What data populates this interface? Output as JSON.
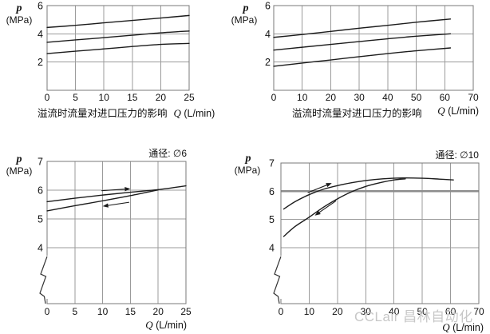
{
  "page": {
    "watermark": "CCLair 昌林自动化",
    "background": "#ffffff"
  },
  "labels": {
    "pressure_symbol": "p",
    "pressure_unit": "(MPa)",
    "flow_symbol": "Q",
    "flow_unit": "(L/min)"
  },
  "colors": {
    "curve": "#1c1c1c",
    "grid": "#9b9b9b",
    "grid_bold": "#8d8d8d",
    "border": "#787878",
    "text": "#111111",
    "watermark": "#c7c7c7"
  },
  "chart_data": [
    {
      "id": "overflow-inlet-pressure-small-valve",
      "type": "line",
      "caption": "溢流时流量对进口压力的影响",
      "xlabel": "Q (L/min)",
      "ylabel": "p (MPa)",
      "xlim": [
        0,
        25
      ],
      "xticks": [
        0,
        5,
        10,
        15,
        20,
        25
      ],
      "ylim": [
        0,
        6
      ],
      "yticks": [
        2,
        4,
        6
      ],
      "ygrid": [
        2,
        4
      ],
      "series": [
        {
          "name": "setting-high",
          "points": [
            [
              0,
              4.45
            ],
            [
              5,
              4.6
            ],
            [
              10,
              4.78
            ],
            [
              15,
              4.95
            ],
            [
              20,
              5.12
            ],
            [
              25,
              5.3
            ]
          ]
        },
        {
          "name": "setting-mid",
          "points": [
            [
              0,
              3.4
            ],
            [
              5,
              3.57
            ],
            [
              10,
              3.73
            ],
            [
              15,
              3.9
            ],
            [
              20,
              4.07
            ],
            [
              25,
              4.2
            ]
          ]
        },
        {
          "name": "setting-low",
          "points": [
            [
              0,
              2.6
            ],
            [
              5,
              2.77
            ],
            [
              10,
              2.93
            ],
            [
              15,
              3.1
            ],
            [
              20,
              3.25
            ],
            [
              25,
              3.32
            ]
          ]
        }
      ]
    },
    {
      "id": "overflow-inlet-pressure-large-valve",
      "type": "line",
      "caption": "溢流时流量对进口压力的影响",
      "xlabel": "Q (L/min)",
      "ylabel": "p (MPa)",
      "xlim": [
        0,
        70
      ],
      "xticks": [
        0,
        10,
        20,
        30,
        40,
        50,
        60,
        70
      ],
      "ylim": [
        0,
        6
      ],
      "yticks": [
        2,
        4,
        6
      ],
      "ygrid": [
        2,
        4
      ],
      "series": [
        {
          "name": "setting-high",
          "points": [
            [
              0,
              3.75
            ],
            [
              10,
              3.95
            ],
            [
              20,
              4.17
            ],
            [
              30,
              4.4
            ],
            [
              40,
              4.6
            ],
            [
              50,
              4.82
            ],
            [
              62,
              5.05
            ]
          ]
        },
        {
          "name": "setting-mid",
          "points": [
            [
              0,
              2.85
            ],
            [
              10,
              3.05
            ],
            [
              20,
              3.25
            ],
            [
              30,
              3.45
            ],
            [
              40,
              3.65
            ],
            [
              50,
              3.83
            ],
            [
              62,
              4.0
            ]
          ]
        },
        {
          "name": "setting-low",
          "points": [
            [
              0,
              1.7
            ],
            [
              10,
              1.93
            ],
            [
              20,
              2.15
            ],
            [
              30,
              2.38
            ],
            [
              40,
              2.6
            ],
            [
              50,
              2.8
            ],
            [
              62,
              3.0
            ]
          ]
        }
      ]
    },
    {
      "id": "hysteresis-dn6",
      "type": "line",
      "size_label": "通径: ∅6",
      "xlabel": "Q (L/min)",
      "ylabel": "p (MPa)",
      "xlim": [
        0,
        25
      ],
      "xticks": [
        0,
        5,
        10,
        15,
        20,
        25
      ],
      "ylim": [
        4,
        7
      ],
      "yticks": [
        4,
        5,
        6,
        7
      ],
      "ygrid": [
        4,
        5,
        6
      ],
      "axis_break": true,
      "series": [
        {
          "name": "increasing-flow",
          "points": [
            [
              0,
              5.6
            ],
            [
              5,
              5.72
            ],
            [
              10,
              5.83
            ],
            [
              15,
              5.93
            ],
            [
              20,
              6.02
            ],
            [
              25,
              6.15
            ]
          ]
        },
        {
          "name": "decreasing-flow",
          "points": [
            [
              0,
              5.28
            ],
            [
              5,
              5.46
            ],
            [
              10,
              5.63
            ],
            [
              15,
              5.81
            ],
            [
              20,
              6.01
            ]
          ]
        }
      ],
      "arrows": [
        {
          "name": "flow-increase-arrow",
          "from": [
            9.8,
            5.98
          ],
          "to": [
            15,
            6.05
          ],
          "dir": "right"
        },
        {
          "name": "flow-decrease-arrow",
          "from": [
            14.8,
            5.58
          ],
          "to": [
            10,
            5.44
          ],
          "dir": "left"
        }
      ]
    },
    {
      "id": "hysteresis-dn10",
      "type": "line",
      "size_label": "通径: ∅10",
      "xlabel": "Q (L/min)",
      "ylabel": "p (MPa)",
      "xlim": [
        0,
        70
      ],
      "xticks": [
        0,
        10,
        20,
        30,
        40,
        50,
        60,
        70
      ],
      "ylim": [
        4,
        7
      ],
      "yticks": [
        4,
        5,
        6,
        7
      ],
      "ygrid": [
        4,
        5,
        6
      ],
      "ygrid_bold": [
        6
      ],
      "axis_break": true,
      "series": [
        {
          "name": "increasing-flow",
          "points": [
            [
              1,
              5.37
            ],
            [
              5,
              5.63
            ],
            [
              10,
              5.88
            ],
            [
              15,
              6.07
            ],
            [
              20,
              6.2
            ],
            [
              25,
              6.3
            ],
            [
              30,
              6.38
            ],
            [
              36,
              6.44
            ],
            [
              43,
              6.47
            ],
            [
              50,
              6.46
            ],
            [
              56,
              6.43
            ],
            [
              61,
              6.4
            ]
          ]
        },
        {
          "name": "decreasing-flow",
          "points": [
            [
              1,
              4.4
            ],
            [
              5,
              4.75
            ],
            [
              10,
              5.08
            ],
            [
              15,
              5.43
            ],
            [
              20,
              5.73
            ],
            [
              25,
              5.98
            ],
            [
              30,
              6.17
            ],
            [
              35,
              6.3
            ],
            [
              40,
              6.4
            ],
            [
              44,
              6.44
            ]
          ]
        }
      ],
      "arrows": [
        {
          "name": "flow-increase-arrow",
          "from": [
            9.5,
            5.95
          ],
          "to": [
            18,
            6.29
          ],
          "dir": "up-right"
        },
        {
          "name": "flow-decrease-arrow",
          "from": [
            19.5,
            5.66
          ],
          "to": [
            12,
            5.14
          ],
          "dir": "down-left"
        }
      ]
    }
  ]
}
